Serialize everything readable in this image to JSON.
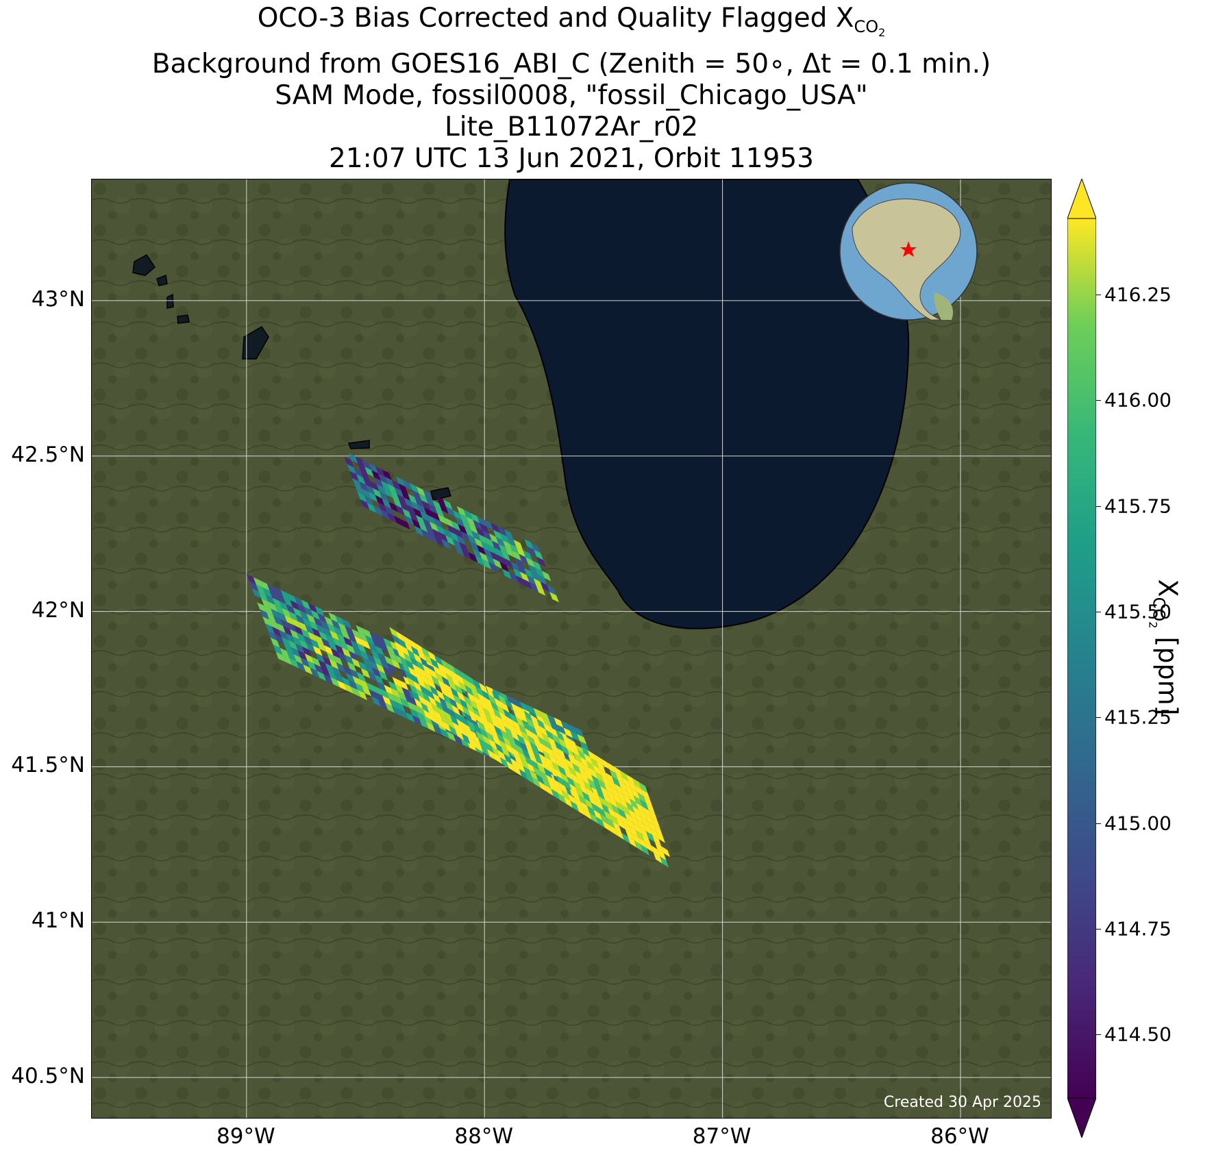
{
  "title": {
    "line1_prefix": "OCO-3 Bias Corrected and Quality Flagged X",
    "line1_sub": "CO",
    "line1_subsub": "2",
    "line2": "Background from GOES16_ABI_C (Zenith = 50∘, Δt =  0.1 min.)",
    "line3": "SAM Mode, fossil0008, \"fossil_Chicago_USA\"",
    "line4": "Lite_B11072Ar_r02",
    "line5": "21:07 UTC 13 Jun 2021, Orbit 11953"
  },
  "map": {
    "lat_ticks": [
      "43°N",
      "42.5°N",
      "42°N",
      "41.5°N",
      "41°N",
      "40.5°N"
    ],
    "lon_ticks": [
      "89°W",
      "88°W",
      "87°W",
      "86°W"
    ],
    "lat_values": [
      43,
      42.5,
      42,
      41.5,
      41,
      40.5
    ],
    "lon_values": [
      -89,
      -88,
      -87,
      -86
    ],
    "extent": {
      "lon_min": -89.65,
      "lon_max": -85.62,
      "lat_min": 40.37,
      "lat_max": 43.39
    },
    "footer": "Created 30 Apr 2025",
    "inset_globe": {
      "marker": "red-star",
      "marker_location": "Chicago"
    },
    "colors": {
      "land": "#4a5233",
      "lake": "#0b1a2e",
      "grid": "#d8d8d8",
      "marker": "#ff0000"
    }
  },
  "colorbar": {
    "label_prefix": "X",
    "label_sub": "CO",
    "label_subsub": "2",
    "label_suffix": " [ppm]",
    "ticks": [
      "416.25",
      "416.00",
      "415.75",
      "415.50",
      "415.25",
      "415.00",
      "414.75",
      "414.50"
    ],
    "tick_values": [
      416.25,
      416.0,
      415.75,
      415.5,
      415.25,
      415.0,
      414.75,
      414.5
    ],
    "vmin": 414.35,
    "vmax": 416.43,
    "colormap": "viridis",
    "extend": "both"
  },
  "chart_data": {
    "type": "heatmap",
    "variable": "XCO2",
    "units": "ppm",
    "value_range": [
      414.35,
      416.43
    ],
    "swaths": [
      {
        "lon_start": -88.6,
        "lat_start": 42.52,
        "lon_end": -87.8,
        "lat_end": 42.22,
        "mean": 414.9
      },
      {
        "lon_start": -89.0,
        "lat_start": 42.12,
        "lon_end": -87.6,
        "lat_end": 41.62,
        "mean": 415.4
      },
      {
        "lon_start": -88.4,
        "lat_start": 41.95,
        "lon_end": -87.35,
        "lat_end": 41.45,
        "mean": 416.0
      }
    ]
  }
}
